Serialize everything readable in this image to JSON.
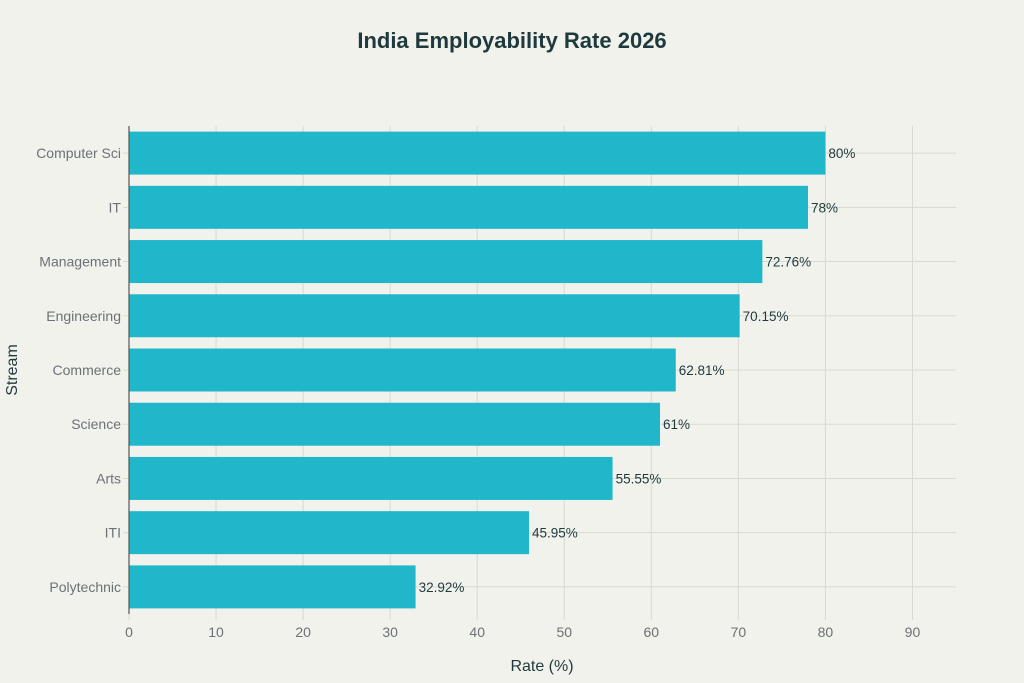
{
  "chart_data": {
    "type": "bar",
    "orientation": "horizontal",
    "title": "India Employability Rate 2026",
    "xlabel": "Rate (%)",
    "ylabel": "Stream",
    "categories": [
      "Computer Sci",
      "IT",
      "Management",
      "Engineering",
      "Commerce",
      "Science",
      "Arts",
      "ITI",
      "Polytechnic"
    ],
    "values": [
      80,
      78,
      72.76,
      70.15,
      62.81,
      61,
      55.55,
      45.95,
      32.92
    ],
    "data_labels": [
      "80%",
      "78%",
      "72.76%",
      "70.15%",
      "62.81%",
      "61%",
      "55.55%",
      "45.95%",
      "32.92%"
    ],
    "xticks": [
      0,
      10,
      20,
      30,
      40,
      50,
      60,
      70,
      80,
      90
    ],
    "xlim": [
      0,
      95
    ],
    "grid": true,
    "bar_color": "#21b7cb"
  }
}
